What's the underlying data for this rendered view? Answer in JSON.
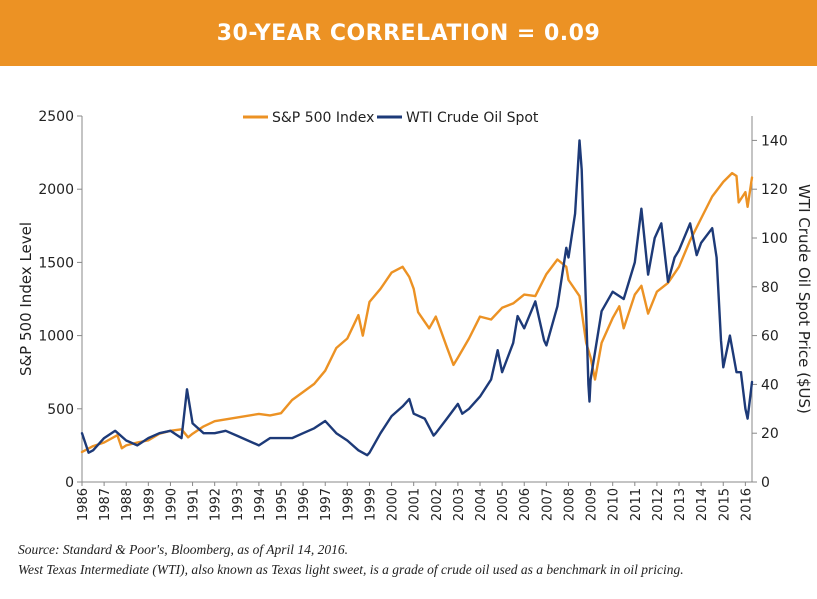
{
  "banner": {
    "title": "30-YEAR CORRELATION = 0.09"
  },
  "footnote": {
    "source": "Source: Standard & Poor's, Bloomberg, as of April 14, 2016.",
    "definition": "West Texas Intermediate (WTI), also known as Texas light sweet, is a grade of crude oil used as a benchmark in oil pricing."
  },
  "colors": {
    "sp500": "#ec9224",
    "wti": "#1d3a78",
    "banner": "#ec9224"
  },
  "chart_data": {
    "type": "line",
    "title": "30-YEAR CORRELATION = 0.09",
    "xlabel": "",
    "ylabel": "S&P 500 Index Level",
    "ylabel_right": "WTI Crude Oil Spot Price ($US)",
    "xlim": [
      1986,
      2016.3
    ],
    "ylim": [
      0,
      2500
    ],
    "ylim_right": [
      0,
      150
    ],
    "x_ticks": [
      "1986",
      "1987",
      "1988",
      "1989",
      "1990",
      "1991",
      "1992",
      "1993",
      "1994",
      "1995",
      "1996",
      "1997",
      "1998",
      "1999",
      "2000",
      "2001",
      "2002",
      "2003",
      "2004",
      "2005",
      "2006",
      "2007",
      "2008",
      "2009",
      "2010",
      "2011",
      "2012",
      "2013",
      "2014",
      "2015",
      "2016"
    ],
    "y_ticks": [
      "0",
      "500",
      "1000",
      "1500",
      "2000",
      "2500"
    ],
    "y_ticks_right": [
      "0",
      "20",
      "40",
      "60",
      "80",
      "100",
      "120",
      "140"
    ],
    "legend_position": "top-center",
    "series": [
      {
        "name": "S&P 500 Index",
        "axis": "left",
        "points": [
          [
            1986,
            205
          ],
          [
            1986.5,
            245
          ],
          [
            1987,
            270
          ],
          [
            1987.6,
            320
          ],
          [
            1987.8,
            230
          ],
          [
            1988,
            250
          ],
          [
            1988.5,
            270
          ],
          [
            1989,
            285
          ],
          [
            1989.5,
            330
          ],
          [
            1990,
            350
          ],
          [
            1990.5,
            360
          ],
          [
            1990.8,
            305
          ],
          [
            1991,
            330
          ],
          [
            1991.5,
            380
          ],
          [
            1992,
            415
          ],
          [
            1993,
            440
          ],
          [
            1994,
            465
          ],
          [
            1994.5,
            455
          ],
          [
            1995,
            470
          ],
          [
            1995.5,
            560
          ],
          [
            1996,
            615
          ],
          [
            1996.5,
            670
          ],
          [
            1997,
            760
          ],
          [
            1997.5,
            915
          ],
          [
            1998,
            980
          ],
          [
            1998.5,
            1140
          ],
          [
            1998.7,
            1000
          ],
          [
            1999,
            1230
          ],
          [
            1999.5,
            1320
          ],
          [
            2000,
            1430
          ],
          [
            2000.5,
            1470
          ],
          [
            2000.8,
            1400
          ],
          [
            2001,
            1320
          ],
          [
            2001.2,
            1160
          ],
          [
            2001.7,
            1050
          ],
          [
            2002,
            1130
          ],
          [
            2002.5,
            920
          ],
          [
            2002.8,
            800
          ],
          [
            2003,
            850
          ],
          [
            2003.5,
            980
          ],
          [
            2004,
            1130
          ],
          [
            2004.5,
            1110
          ],
          [
            2005,
            1190
          ],
          [
            2005.5,
            1220
          ],
          [
            2006,
            1280
          ],
          [
            2006.5,
            1270
          ],
          [
            2007,
            1420
          ],
          [
            2007.5,
            1520
          ],
          [
            2007.9,
            1470
          ],
          [
            2008,
            1380
          ],
          [
            2008.5,
            1270
          ],
          [
            2008.8,
            950
          ],
          [
            2009,
            850
          ],
          [
            2009.2,
            700
          ],
          [
            2009.5,
            950
          ],
          [
            2010,
            1120
          ],
          [
            2010.3,
            1200
          ],
          [
            2010.5,
            1050
          ],
          [
            2011,
            1280
          ],
          [
            2011.3,
            1340
          ],
          [
            2011.6,
            1150
          ],
          [
            2012,
            1300
          ],
          [
            2012.5,
            1360
          ],
          [
            2013,
            1470
          ],
          [
            2013.5,
            1650
          ],
          [
            2014,
            1800
          ],
          [
            2014.5,
            1950
          ],
          [
            2015,
            2050
          ],
          [
            2015.4,
            2110
          ],
          [
            2015.6,
            2090
          ],
          [
            2015.7,
            1910
          ],
          [
            2016,
            1980
          ],
          [
            2016.1,
            1880
          ],
          [
            2016.3,
            2080
          ]
        ]
      },
      {
        "name": "WTI Crude Oil Spot",
        "axis": "right",
        "points": [
          [
            1986,
            20
          ],
          [
            1986.3,
            12
          ],
          [
            1986.5,
            13
          ],
          [
            1987,
            18
          ],
          [
            1987.5,
            21
          ],
          [
            1988,
            17
          ],
          [
            1988.5,
            15
          ],
          [
            1989,
            18
          ],
          [
            1989.5,
            20
          ],
          [
            1990,
            21
          ],
          [
            1990.5,
            18
          ],
          [
            1990.75,
            38
          ],
          [
            1991,
            24
          ],
          [
            1991.5,
            20
          ],
          [
            1992,
            20
          ],
          [
            1992.5,
            21
          ],
          [
            1993,
            19
          ],
          [
            1993.5,
            17
          ],
          [
            1994,
            15
          ],
          [
            1994.5,
            18
          ],
          [
            1995,
            18
          ],
          [
            1995.5,
            18
          ],
          [
            1996,
            20
          ],
          [
            1996.5,
            22
          ],
          [
            1997,
            25
          ],
          [
            1997.5,
            20
          ],
          [
            1998,
            17
          ],
          [
            1998.5,
            13
          ],
          [
            1998.9,
            11
          ],
          [
            1999,
            12
          ],
          [
            1999.5,
            20
          ],
          [
            2000,
            27
          ],
          [
            2000.5,
            31
          ],
          [
            2000.8,
            34
          ],
          [
            2001,
            28
          ],
          [
            2001.5,
            26
          ],
          [
            2001.9,
            19
          ],
          [
            2002,
            20
          ],
          [
            2002.5,
            26
          ],
          [
            2003,
            32
          ],
          [
            2003.2,
            28
          ],
          [
            2003.5,
            30
          ],
          [
            2004,
            35
          ],
          [
            2004.5,
            42
          ],
          [
            2004.8,
            54
          ],
          [
            2005,
            45
          ],
          [
            2005.5,
            57
          ],
          [
            2005.7,
            68
          ],
          [
            2006,
            63
          ],
          [
            2006.5,
            74
          ],
          [
            2006.9,
            58
          ],
          [
            2007,
            56
          ],
          [
            2007.5,
            72
          ],
          [
            2007.9,
            96
          ],
          [
            2008,
            92
          ],
          [
            2008.3,
            110
          ],
          [
            2008.5,
            140
          ],
          [
            2008.6,
            128
          ],
          [
            2008.9,
            40
          ],
          [
            2008.95,
            33
          ],
          [
            2009,
            42
          ],
          [
            2009.5,
            70
          ],
          [
            2010,
            78
          ],
          [
            2010.5,
            75
          ],
          [
            2011,
            90
          ],
          [
            2011.3,
            112
          ],
          [
            2011.6,
            85
          ],
          [
            2011.9,
            100
          ],
          [
            2012,
            102
          ],
          [
            2012.2,
            106
          ],
          [
            2012.5,
            82
          ],
          [
            2012.8,
            92
          ],
          [
            2013,
            95
          ],
          [
            2013.5,
            106
          ],
          [
            2013.8,
            93
          ],
          [
            2014,
            98
          ],
          [
            2014.5,
            104
          ],
          [
            2014.7,
            92
          ],
          [
            2014.9,
            58
          ],
          [
            2015,
            47
          ],
          [
            2015.3,
            60
          ],
          [
            2015.6,
            45
          ],
          [
            2015.8,
            45
          ],
          [
            2016,
            30
          ],
          [
            2016.1,
            26
          ],
          [
            2016.3,
            41
          ]
        ]
      }
    ]
  }
}
